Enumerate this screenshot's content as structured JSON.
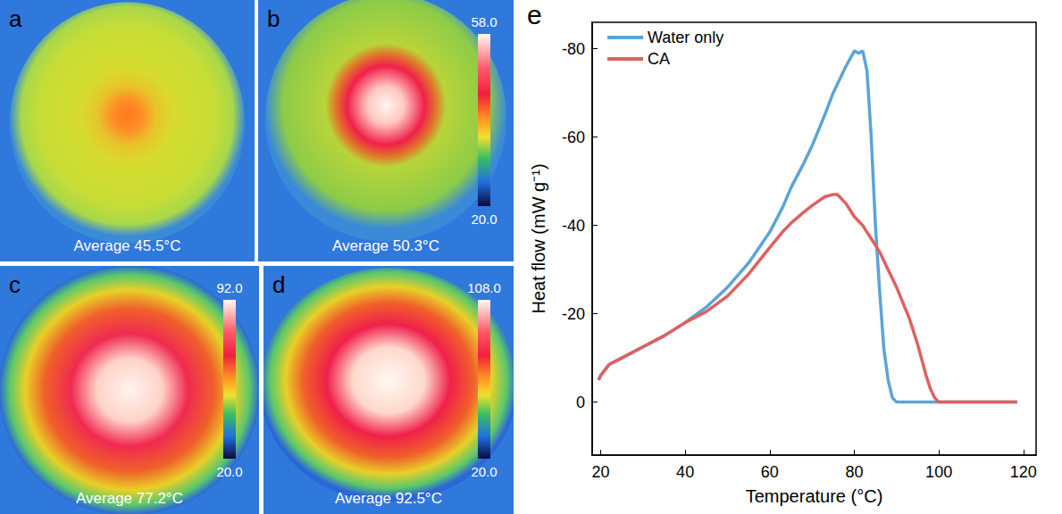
{
  "panels": [
    {
      "letter": "a",
      "average": "Average 45.5°C"
    },
    {
      "letter": "b",
      "average": "Average 50.3°C",
      "colorbar": {
        "max": "58.0",
        "min": "20.0"
      }
    },
    {
      "letter": "c",
      "average": "Average 77.2°C",
      "colorbar": {
        "max": "92.0",
        "min": "20.0"
      }
    },
    {
      "letter": "d",
      "average": "Average 92.5°C",
      "colorbar": {
        "max": "108.0",
        "min": "20.0"
      }
    }
  ],
  "chart_data": {
    "letter": "e",
    "type": "line",
    "x_label": "Temperature (°C)",
    "y_label": "Heat flow (mW g⁻¹)",
    "x": [
      19.5,
      20,
      22,
      25,
      30,
      35,
      40,
      45,
      50,
      55,
      60,
      63,
      65,
      68,
      70,
      73,
      75,
      76,
      78,
      80,
      81,
      82,
      83,
      84,
      85,
      86,
      87,
      88,
      89,
      90,
      93,
      95,
      97,
      98,
      99,
      100,
      110,
      118.5
    ],
    "series": [
      {
        "name": "Water only",
        "color": "#5ba4d8",
        "values": [
          -5,
          -6,
          -8.5,
          -10,
          -12.5,
          -15,
          -18,
          -21.5,
          -26,
          -31.5,
          -38.5,
          -44,
          -48.5,
          -54,
          -58,
          -65,
          -70,
          -72,
          -76,
          -79.5,
          -79,
          -79.5,
          -75,
          -60,
          -40,
          -25,
          -12,
          -5,
          -1,
          0,
          0,
          0,
          0,
          0,
          0,
          0,
          0,
          0
        ]
      },
      {
        "name": "CA",
        "color": "#e0605e",
        "values": [
          -5,
          -6,
          -8.5,
          -10,
          -12.5,
          -15,
          -18,
          -20.5,
          -24,
          -29,
          -35,
          -38.5,
          -40.5,
          -43,
          -44.5,
          -46.5,
          -47,
          -47,
          -45,
          -42,
          -41,
          -40,
          -38.5,
          -37,
          -35.5,
          -34,
          -32,
          -30,
          -28,
          -26,
          -19,
          -13,
          -6,
          -3,
          -1,
          0,
          0,
          0
        ]
      }
    ],
    "xlim": [
      18,
      123
    ],
    "xticks": [
      20,
      40,
      60,
      80,
      100,
      120
    ],
    "ylim": [
      12,
      -86
    ],
    "yticks": [
      0,
      -20,
      -40,
      -60,
      -80
    ],
    "legend": "upper left",
    "grid": false
  }
}
